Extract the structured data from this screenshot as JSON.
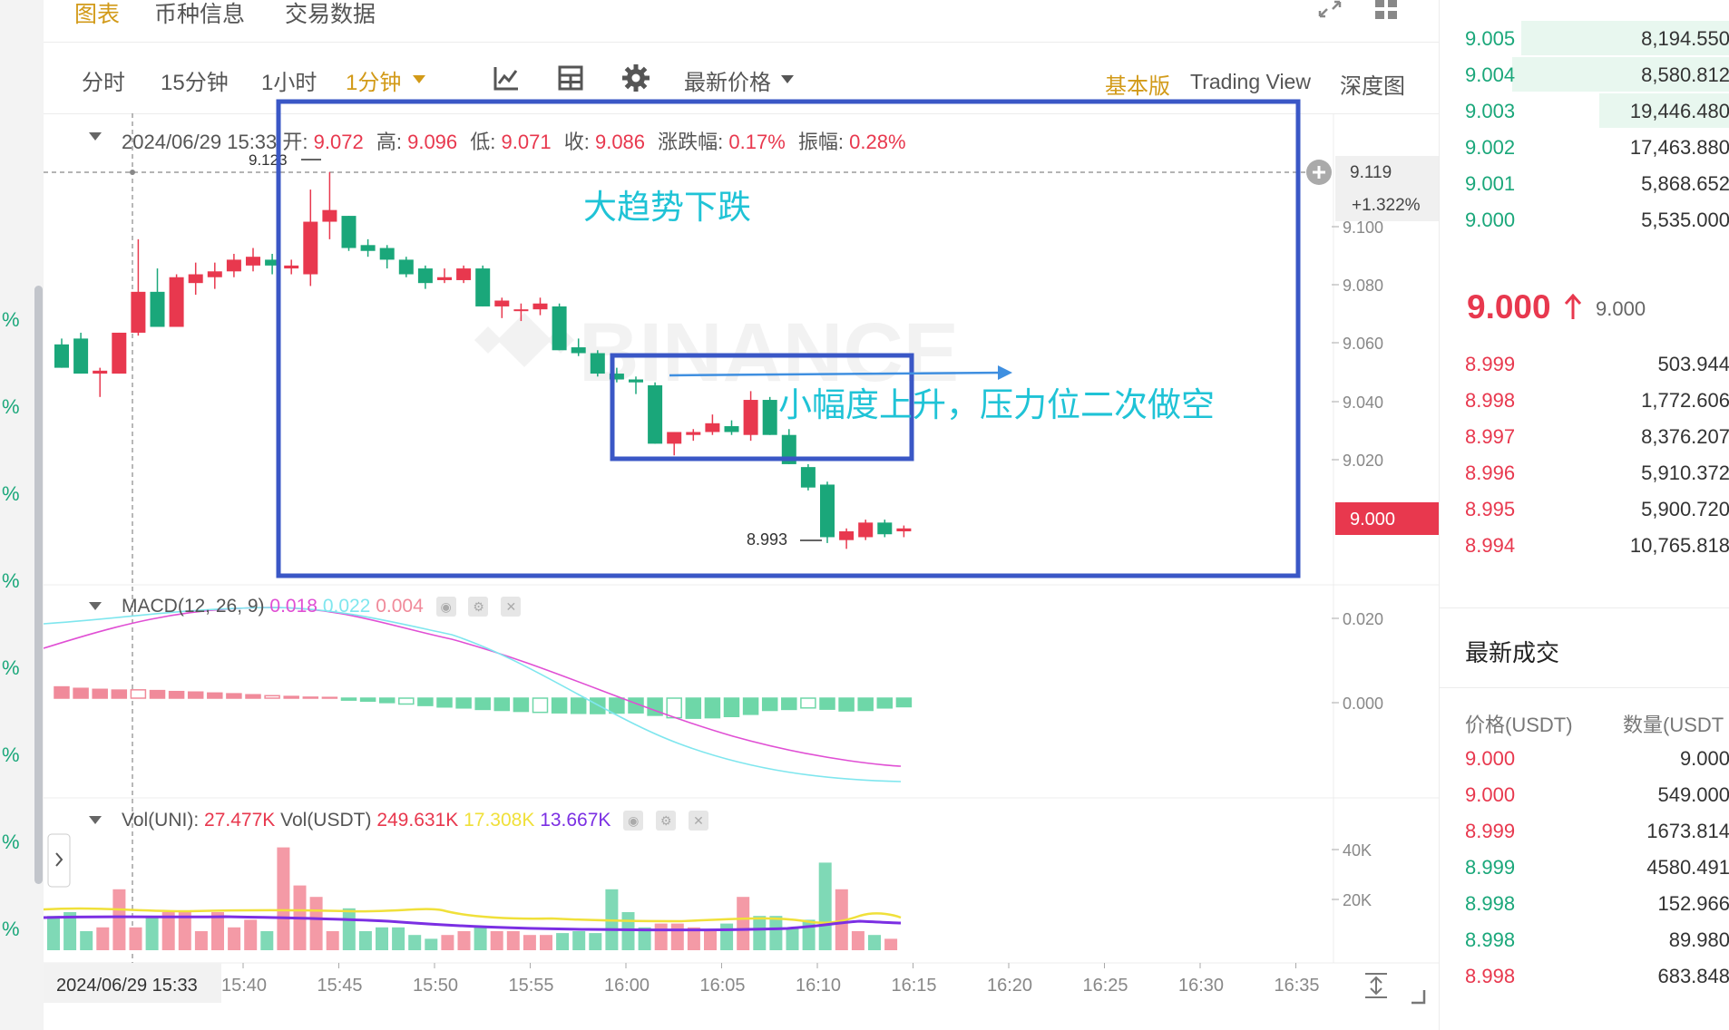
{
  "left_strip": {
    "pct_symbol": "%"
  },
  "top_tabs": [
    "图表",
    "币种信息",
    "交易数据"
  ],
  "toolbar": {
    "intervals": [
      {
        "label": "分时",
        "active": false
      },
      {
        "label": "15分钟",
        "active": false
      },
      {
        "label": "1小时",
        "active": false
      },
      {
        "label": "1分钟",
        "active": true
      }
    ],
    "price_type": "最新价格",
    "versions": [
      {
        "label": "基本版",
        "active": true
      },
      {
        "label": "Trading View",
        "active": false
      },
      {
        "label": "深度图",
        "active": false
      }
    ],
    "icons": [
      "indicator-icon",
      "layout-grid-icon",
      "settings-gear-icon",
      "expand-icon",
      "grid-view-icon"
    ]
  },
  "ohlc": {
    "date": "2024/06/29 15:33",
    "open_label": "开:",
    "open": "9.072",
    "high_label": "高:",
    "high": "9.096",
    "low_label": "低:",
    "low": "9.071",
    "close_label": "收:",
    "close": "9.086",
    "change_label": "涨跌幅:",
    "change": "0.17%",
    "amp_label": "振幅:",
    "amp": "0.28%"
  },
  "watermark": "BINANCE",
  "annotations": {
    "trend": "大趋势下跌",
    "second": "小幅度上升，压力位二次做空"
  },
  "price_markers": {
    "high_label": "9.123",
    "low_label": "8.993",
    "cursor_price": "9.119",
    "cursor_pct": "+1.322%",
    "last_price": "9.000"
  },
  "colors": {
    "up": "#e8384e",
    "down": "#1aa77a",
    "accent": "#d29a18",
    "annotation": "#1fc3d6",
    "box": "#3a57c6"
  },
  "chart_data": {
    "type": "candlestick",
    "x_time_labels": [
      "15:40",
      "15:45",
      "15:50",
      "15:55",
      "16:00",
      "16:05",
      "16:10",
      "16:15",
      "16:20",
      "16:25",
      "16:30",
      "16:35"
    ],
    "cursor_time": "2024/06/29 15:33",
    "price_axis_ticks": [
      "9.100",
      "9.080",
      "9.060",
      "9.040",
      "9.020"
    ],
    "price_range": [
      8.982,
      9.14
    ],
    "candles": [
      {
        "o": 9.064,
        "h": 9.066,
        "l": 9.056,
        "c": 9.056
      },
      {
        "o": 9.066,
        "h": 9.068,
        "l": 9.054,
        "c": 9.054
      },
      {
        "o": 9.054,
        "h": 9.056,
        "l": 9.046,
        "c": 9.055
      },
      {
        "o": 9.054,
        "h": 9.068,
        "l": 9.054,
        "c": 9.068
      },
      {
        "o": 9.068,
        "h": 9.1,
        "l": 9.067,
        "c": 9.082
      },
      {
        "o": 9.082,
        "h": 9.09,
        "l": 9.07,
        "c": 9.07
      },
      {
        "o": 9.07,
        "h": 9.088,
        "l": 9.07,
        "c": 9.087
      },
      {
        "o": 9.085,
        "h": 9.092,
        "l": 9.081,
        "c": 9.088
      },
      {
        "o": 9.087,
        "h": 9.092,
        "l": 9.083,
        "c": 9.089
      },
      {
        "o": 9.089,
        "h": 9.095,
        "l": 9.087,
        "c": 9.093
      },
      {
        "o": 9.091,
        "h": 9.097,
        "l": 9.089,
        "c": 9.094
      },
      {
        "o": 9.093,
        "h": 9.095,
        "l": 9.088,
        "c": 9.091
      },
      {
        "o": 9.09,
        "h": 9.093,
        "l": 9.088,
        "c": 9.091
      },
      {
        "o": 9.088,
        "h": 9.117,
        "l": 9.084,
        "c": 9.106
      },
      {
        "o": 9.106,
        "h": 9.123,
        "l": 9.1,
        "c": 9.11
      },
      {
        "o": 9.108,
        "h": 9.108,
        "l": 9.096,
        "c": 9.097
      },
      {
        "o": 9.098,
        "h": 9.1,
        "l": 9.094,
        "c": 9.096
      },
      {
        "o": 9.097,
        "h": 9.098,
        "l": 9.09,
        "c": 9.093
      },
      {
        "o": 9.093,
        "h": 9.094,
        "l": 9.087,
        "c": 9.088
      },
      {
        "o": 9.09,
        "h": 9.091,
        "l": 9.083,
        "c": 9.085
      },
      {
        "o": 9.086,
        "h": 9.09,
        "l": 9.085,
        "c": 9.087
      },
      {
        "o": 9.086,
        "h": 9.091,
        "l": 9.085,
        "c": 9.09
      },
      {
        "o": 9.09,
        "h": 9.091,
        "l": 9.077,
        "c": 9.077
      },
      {
        "o": 9.077,
        "h": 9.08,
        "l": 9.073,
        "c": 9.079
      },
      {
        "o": 9.076,
        "h": 9.078,
        "l": 9.072,
        "c": 9.076
      },
      {
        "o": 9.076,
        "h": 9.08,
        "l": 9.074,
        "c": 9.078
      },
      {
        "o": 9.077,
        "h": 9.078,
        "l": 9.062,
        "c": 9.062
      },
      {
        "o": 9.063,
        "h": 9.066,
        "l": 9.06,
        "c": 9.061
      },
      {
        "o": 9.061,
        "h": 9.062,
        "l": 9.053,
        "c": 9.054
      },
      {
        "o": 9.054,
        "h": 9.056,
        "l": 9.051,
        "c": 9.052
      },
      {
        "o": 9.052,
        "h": 9.053,
        "l": 9.047,
        "c": 9.051
      },
      {
        "o": 9.05,
        "h": 9.051,
        "l": 9.03,
        "c": 9.03
      },
      {
        "o": 9.03,
        "h": 9.034,
        "l": 9.026,
        "c": 9.034
      },
      {
        "o": 9.033,
        "h": 9.035,
        "l": 9.031,
        "c": 9.034
      },
      {
        "o": 9.034,
        "h": 9.04,
        "l": 9.033,
        "c": 9.037
      },
      {
        "o": 9.036,
        "h": 9.038,
        "l": 9.033,
        "c": 9.034
      },
      {
        "o": 9.033,
        "h": 9.048,
        "l": 9.031,
        "c": 9.045
      },
      {
        "o": 9.045,
        "h": 9.046,
        "l": 9.033,
        "c": 9.033
      },
      {
        "o": 9.033,
        "h": 9.035,
        "l": 9.023,
        "c": 9.023
      },
      {
        "o": 9.022,
        "h": 9.023,
        "l": 9.014,
        "c": 9.015
      },
      {
        "o": 9.016,
        "h": 9.017,
        "l": 8.996,
        "c": 8.998
      },
      {
        "o": 8.997,
        "h": 9.001,
        "l": 8.994,
        "c": 9.0
      },
      {
        "o": 8.998,
        "h": 9.004,
        "l": 8.997,
        "c": 9.003
      },
      {
        "o": 9.003,
        "h": 9.004,
        "l": 8.998,
        "c": 8.999
      },
      {
        "o": 9.0,
        "h": 9.002,
        "l": 8.998,
        "c": 9.001
      }
    ],
    "macd": {
      "label": "MACD(12, 26, 9)",
      "dif": "0.018",
      "dea": "0.022",
      "hist": "0.004",
      "axis_ticks": [
        "0.020",
        "0.000"
      ],
      "histogram": [
        0.0046,
        0.004,
        0.0036,
        0.0033,
        0.0034,
        0.0031,
        0.0027,
        0.0025,
        0.0021,
        0.0018,
        0.0014,
        0.001,
        0.0007,
        0.0004,
        0.0003,
        -0.0008,
        -0.0012,
        -0.0018,
        -0.0024,
        -0.003,
        -0.0036,
        -0.004,
        -0.0046,
        -0.005,
        -0.0054,
        -0.0058,
        -0.006,
        -0.0062,
        -0.0063,
        -0.0061,
        -0.006,
        -0.007,
        -0.008,
        -0.0082,
        -0.008,
        -0.0075,
        -0.0066,
        -0.005,
        -0.0046,
        -0.004,
        -0.0045,
        -0.0052,
        -0.005,
        -0.004,
        -0.0035
      ]
    },
    "volume": {
      "label": "Vol(UNI):",
      "uni": "27.477K",
      "usdt_label": "Vol(USDT)",
      "usdt": "249.631K",
      "ma1": "17.308K",
      "ma2": "13.667K",
      "axis_ticks": [
        "40K",
        "20K"
      ],
      "bars": [
        9000,
        10000,
        5000,
        6000,
        16000,
        6000,
        9000,
        10000,
        10000,
        5000,
        10000,
        6000,
        8000,
        5000,
        27000,
        17000,
        14000,
        5000,
        11000,
        5000,
        6000,
        6000,
        4000,
        3000,
        4000,
        5000,
        6000,
        5000,
        5000,
        4000,
        4000,
        4500,
        5000,
        4500,
        16000,
        10000,
        6000,
        7000,
        7000,
        6000,
        5000,
        7000,
        14000,
        9000,
        9000,
        6000,
        8000,
        23000,
        16000,
        5000,
        4000,
        3000
      ]
    }
  },
  "orderbook": {
    "asks": [
      {
        "price": "9.005",
        "qty": "8,194.550",
        "depth": 0.72
      },
      {
        "price": "9.004",
        "qty": "8,580.812",
        "depth": 0.75
      },
      {
        "price": "9.003",
        "qty": "19,446.480",
        "depth": 0.45
      },
      {
        "price": "9.002",
        "qty": "17,463.880",
        "depth": 0
      },
      {
        "price": "9.001",
        "qty": "5,868.652",
        "depth": 0
      },
      {
        "price": "9.000",
        "qty": "5,535.000",
        "depth": 0
      }
    ],
    "mid_price": "9.000",
    "mid_secondary": "9.000",
    "bids": [
      {
        "price": "8.999",
        "qty": "503.944"
      },
      {
        "price": "8.998",
        "qty": "1,772.606"
      },
      {
        "price": "8.997",
        "qty": "8,376.207"
      },
      {
        "price": "8.996",
        "qty": "5,910.372"
      },
      {
        "price": "8.995",
        "qty": "5,900.720"
      },
      {
        "price": "8.994",
        "qty": "10,765.818"
      }
    ],
    "trades_title": "最新成交",
    "col_price": "价格(USDT)",
    "col_qty": "数量(USDT",
    "trades": [
      {
        "price": "9.000",
        "qty": "9.000",
        "side": "red"
      },
      {
        "price": "9.000",
        "qty": "549.000",
        "side": "red"
      },
      {
        "price": "8.999",
        "qty": "1673.814",
        "side": "red"
      },
      {
        "price": "8.999",
        "qty": "4580.491",
        "side": "green"
      },
      {
        "price": "8.998",
        "qty": "152.966",
        "side": "green"
      },
      {
        "price": "8.998",
        "qty": "89.980",
        "side": "green"
      },
      {
        "price": "8.998",
        "qty": "683.848",
        "side": "red"
      }
    ]
  }
}
